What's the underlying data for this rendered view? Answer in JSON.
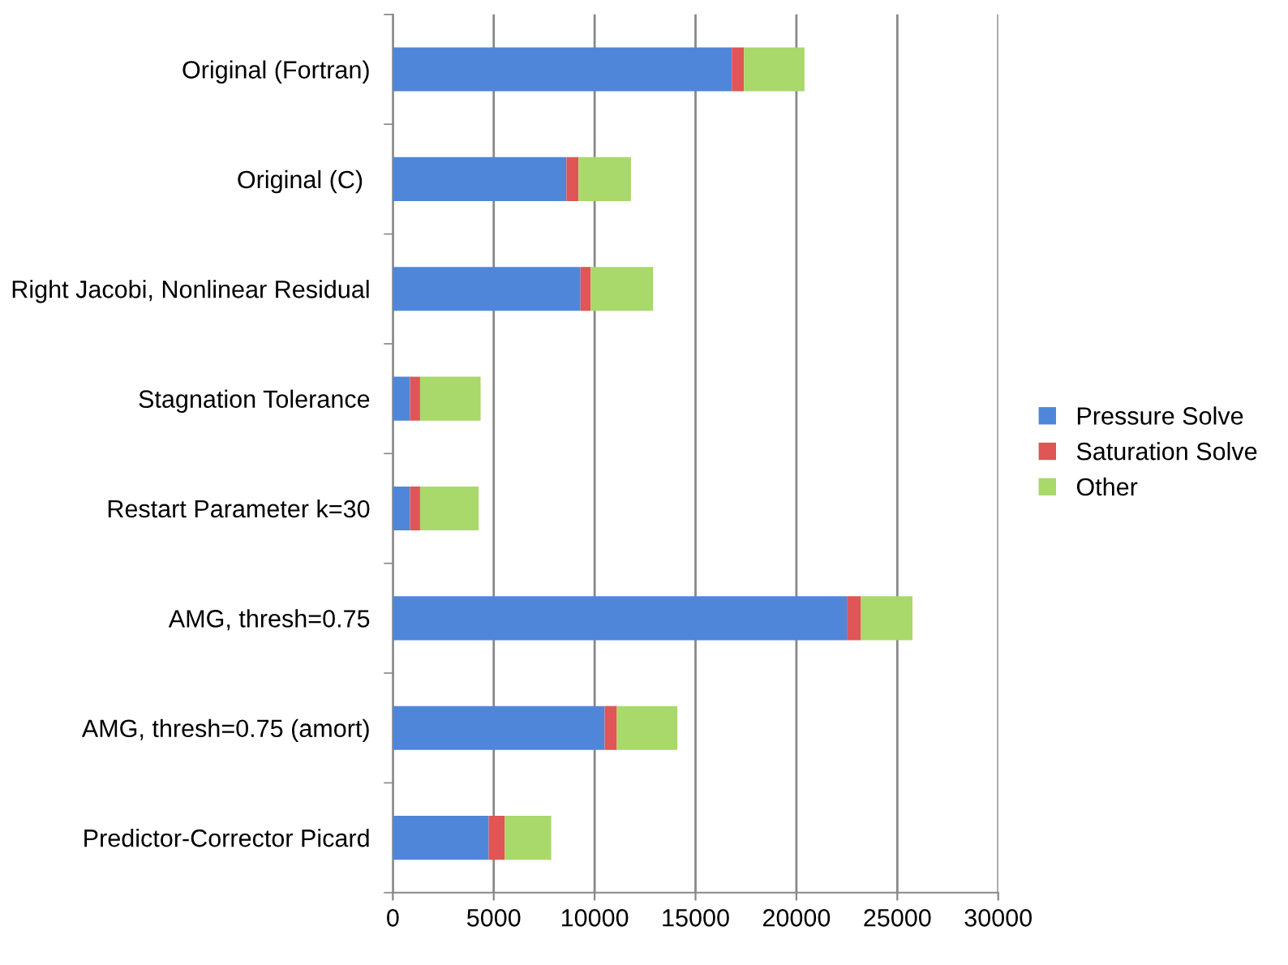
{
  "chart_data": {
    "type": "bar",
    "orientation": "horizontal",
    "stacked": true,
    "categories": [
      "Original (Fortran)",
      "Original (C) ",
      "Right Jacobi, Nonlinear Residual",
      "Stagnation Tolerance",
      "Restart Parameter k=30",
      "AMG, thresh=0.75",
      "AMG, thresh=0.75 (amort)",
      "Predictor-Corrector Picard"
    ],
    "series": [
      {
        "name": "Pressure Solve",
        "color": "#4f86d9",
        "values": [
          16800,
          8600,
          9300,
          850,
          850,
          22500,
          10500,
          4750
        ]
      },
      {
        "name": "Saturation Solve",
        "color": "#e05555",
        "values": [
          600,
          600,
          500,
          500,
          500,
          700,
          600,
          800
        ]
      },
      {
        "name": "Other",
        "color": "#a9d86b",
        "values": [
          3000,
          2600,
          3100,
          3000,
          2900,
          2550,
          3000,
          2300
        ]
      }
    ],
    "xlim": [
      0,
      30000
    ],
    "xticks": [
      0,
      5000,
      10000,
      15000,
      20000,
      25000,
      30000
    ],
    "grid": "x",
    "legend": "right"
  }
}
